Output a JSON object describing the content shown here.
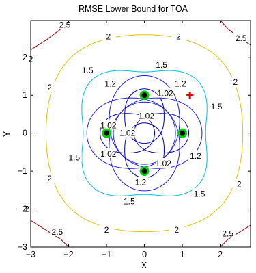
{
  "chart_data": {
    "type": "contour",
    "title": "RMSE Lower Bound for TOA",
    "xlabel": "X",
    "ylabel": "Y",
    "xlim": [
      -3,
      3
    ],
    "ylim": [
      -3,
      3
    ],
    "xticks": [
      -3,
      -2,
      -1,
      0,
      1,
      2
    ],
    "yticks": [
      -3,
      -2,
      -1,
      0,
      1,
      2
    ],
    "grid": false,
    "sensors": [
      {
        "x": 0,
        "y": 1
      },
      {
        "x": 1,
        "y": 0
      },
      {
        "x": 0,
        "y": -1
      },
      {
        "x": -1,
        "y": 0
      }
    ],
    "target": {
      "x": 1.2,
      "y": 1.0
    },
    "contour_levels": [
      {
        "level": "1.02",
        "color": "#0000a0"
      },
      {
        "level": "1.2",
        "color": "#2020e0"
      },
      {
        "level": "1.5",
        "color": "#00c0e0"
      },
      {
        "level": "2",
        "color": "#e8c000"
      },
      {
        "level": "2.5",
        "color": "#a00000"
      }
    ],
    "contour_labels": [
      {
        "text": "2.5",
        "x": -2.1,
        "y": 2.85
      },
      {
        "text": "2",
        "x": -0.95,
        "y": 2.55
      },
      {
        "text": "2",
        "x": 0.9,
        "y": 2.55
      },
      {
        "text": "2.5",
        "x": 2.55,
        "y": 2.5
      },
      {
        "text": "2",
        "x": -3.0,
        "y": 1.95
      },
      {
        "text": "1.5",
        "x": 0.45,
        "y": 1.8
      },
      {
        "text": "1.5",
        "x": -1.5,
        "y": 1.65
      },
      {
        "text": "1.2",
        "x": -0.9,
        "y": 1.3
      },
      {
        "text": "1.2",
        "x": 0.95,
        "y": 1.3
      },
      {
        "text": "2",
        "x": -2.5,
        "y": 1.2
      },
      {
        "text": "2",
        "x": 2.4,
        "y": 1.35
      },
      {
        "text": "1.02",
        "x": 0.55,
        "y": 1.05
      },
      {
        "text": "1.5",
        "x": 1.9,
        "y": 0.7
      },
      {
        "text": "1.02",
        "x": 0.05,
        "y": 0.45
      },
      {
        "text": "1.02",
        "x": -0.95,
        "y": 0.2
      },
      {
        "text": "1.02",
        "x": -0.45,
        "y": 0.0
      },
      {
        "text": "1.02",
        "x": -0.95,
        "y": -0.55
      },
      {
        "text": "1.5",
        "x": -1.85,
        "y": -0.65
      },
      {
        "text": "1.02",
        "x": 0.5,
        "y": -0.8
      },
      {
        "text": "1.2",
        "x": 1.35,
        "y": -0.6
      },
      {
        "text": "2",
        "x": -2.5,
        "y": -1.2
      },
      {
        "text": "2",
        "x": 2.5,
        "y": -1.35
      },
      {
        "text": "1.2",
        "x": -0.1,
        "y": -1.3
      },
      {
        "text": "1.5",
        "x": 1.45,
        "y": -1.6
      },
      {
        "text": "1.5",
        "x": -0.4,
        "y": -1.8
      },
      {
        "text": "2",
        "x": -3.1,
        "y": -2.0
      },
      {
        "text": "2",
        "x": -1.0,
        "y": -2.55
      },
      {
        "text": "2",
        "x": 0.85,
        "y": -2.55
      },
      {
        "text": "2.5",
        "x": -2.3,
        "y": -2.6
      },
      {
        "text": "2.5",
        "x": 2.2,
        "y": -2.65
      }
    ]
  }
}
